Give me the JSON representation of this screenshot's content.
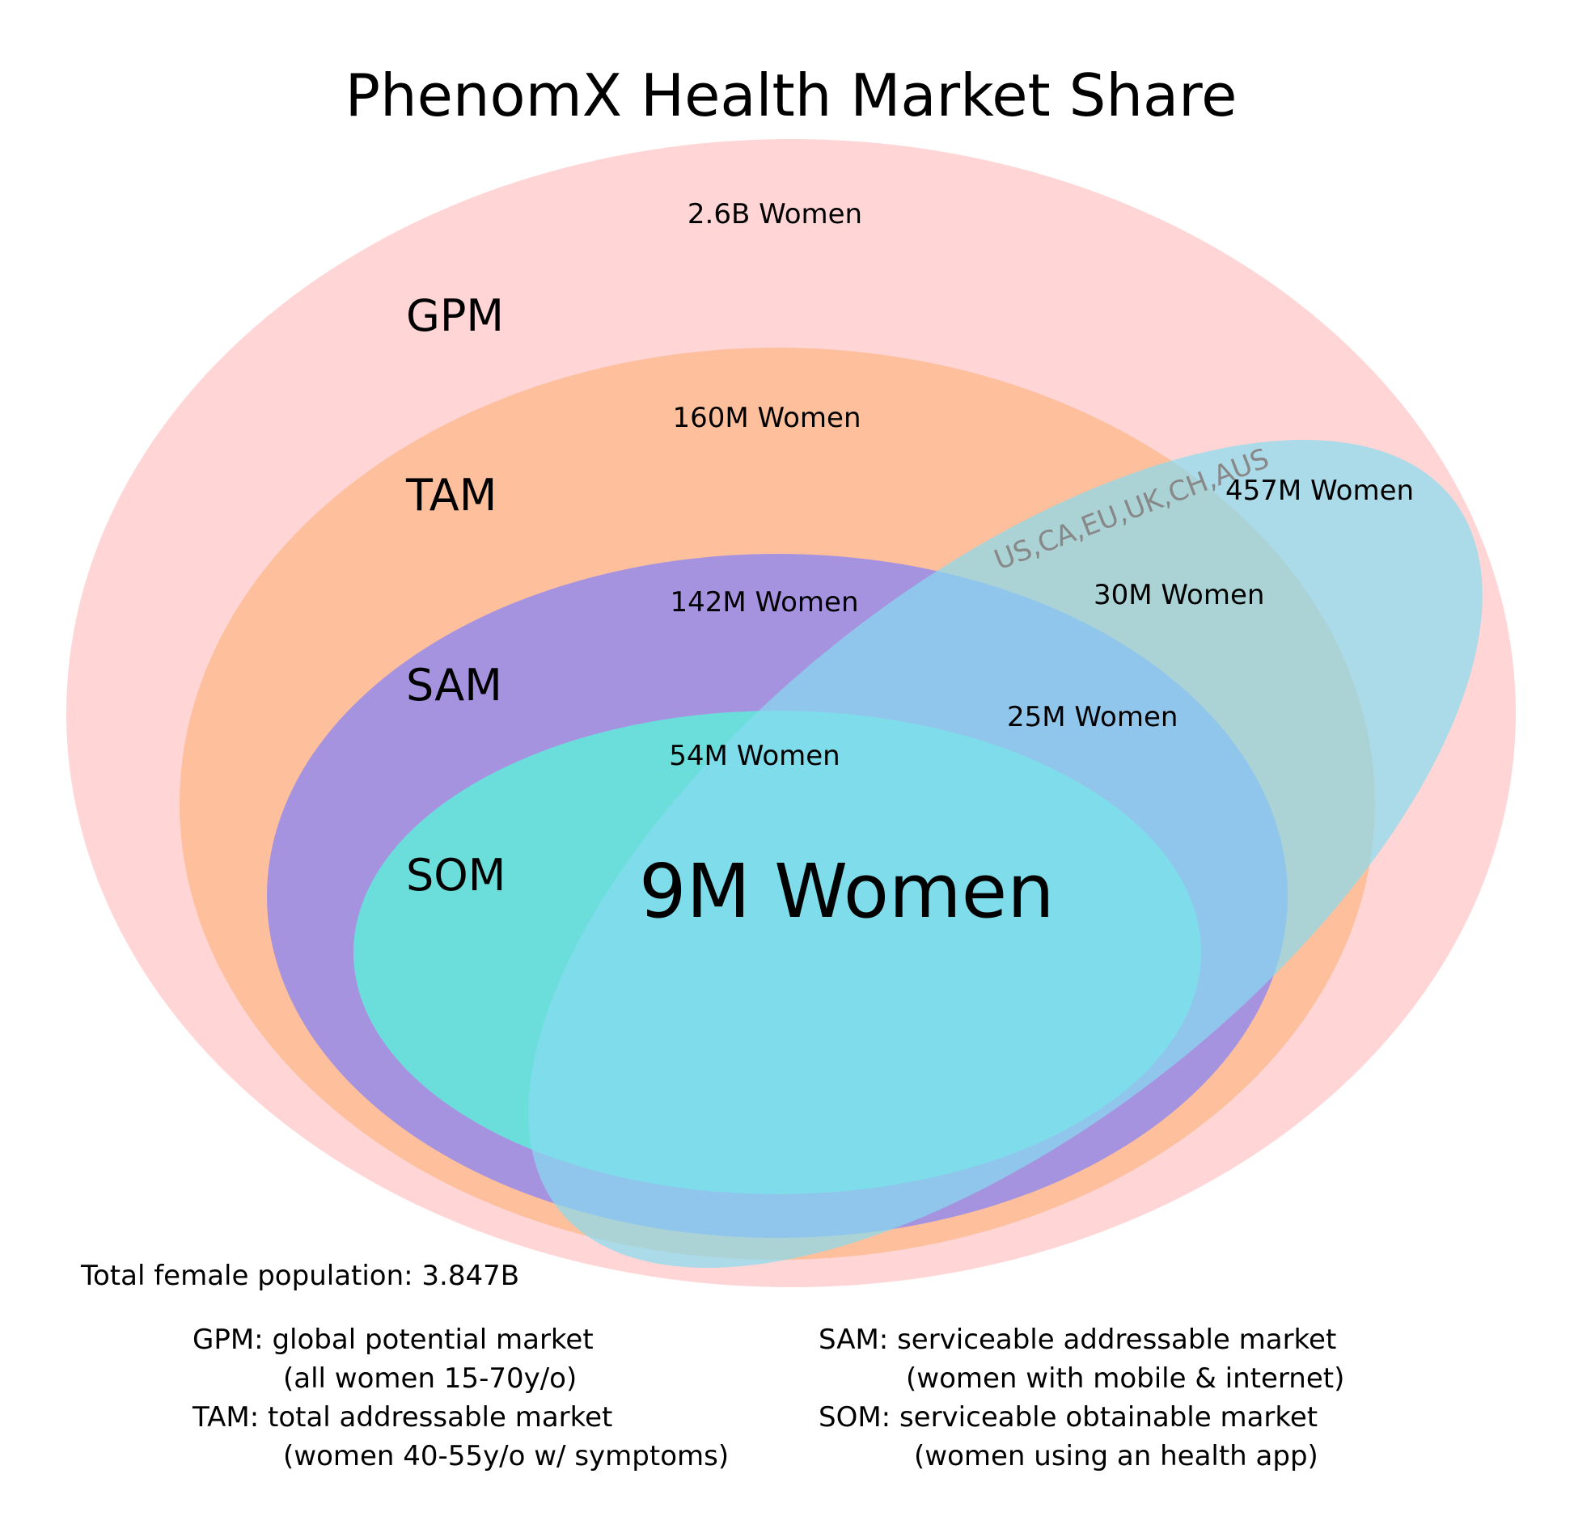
{
  "title": "PhenomX Health Market Share",
  "colors": {
    "gpm": "#ffd5d6",
    "tam": "#fdbf9c",
    "sam": "#a693e0",
    "som": "#6bdedc",
    "region": "#87dcf0",
    "region_text": "#888888"
  },
  "tiers": {
    "gpm": {
      "label": "GPM",
      "count": "2.6B Women"
    },
    "tam": {
      "label": "TAM",
      "count": "160M Women"
    },
    "sam": {
      "label": "SAM",
      "count": "142M Women"
    },
    "som": {
      "label": "SOM",
      "count": "54M Women"
    }
  },
  "region": {
    "label": "US,CA,EU,UK,CH,AUS",
    "count": "457M Women",
    "tam_overlap": "30M Women",
    "sam_overlap": "25M Women",
    "som_overlap": "9M Women"
  },
  "total_population": "Total female population: 3.847B",
  "definitions": {
    "gpm_line1": "GPM: global potential market",
    "gpm_line2": "(all women 15-70y/o)",
    "tam_line1": "TAM: total addressable market",
    "tam_line2": "(women 40-55y/o w/ symptoms)",
    "sam_line1": "SAM: serviceable addressable market",
    "sam_line2": "(women with mobile & internet)",
    "som_line1": "SOM: serviceable obtainable market",
    "som_line2": "(women using an health app)"
  }
}
